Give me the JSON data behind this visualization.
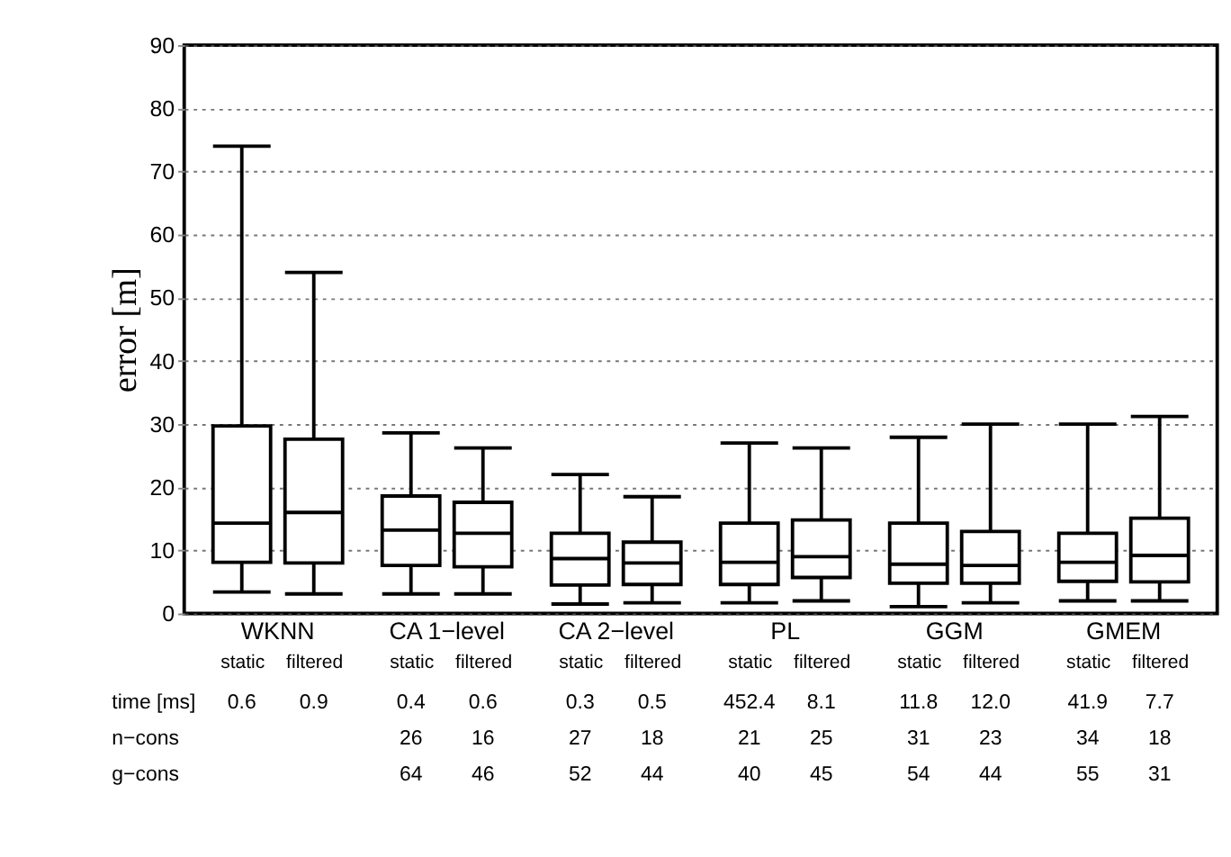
{
  "chart_data": {
    "type": "box",
    "ylabel": "error [m]",
    "ylim": [
      0,
      90
    ],
    "yticks": [
      0,
      10,
      20,
      30,
      40,
      50,
      60,
      70,
      80,
      90
    ],
    "grid": "y",
    "categories": [
      "static",
      "filtered",
      "static",
      "filtered",
      "static",
      "filtered",
      "static",
      "filtered",
      "static",
      "filtered",
      "static",
      "filtered"
    ],
    "boxes": [
      {
        "low": 3.4,
        "q1": 8.1,
        "median": 14.3,
        "q3": 29.7,
        "high": 74
      },
      {
        "low": 3.1,
        "q1": 8.0,
        "median": 16,
        "q3": 27.6,
        "high": 54
      },
      {
        "low": 3.1,
        "q1": 7.6,
        "median": 13.2,
        "q3": 18.6,
        "high": 28.6
      },
      {
        "low": 3.1,
        "q1": 7.4,
        "median": 12.7,
        "q3": 17.6,
        "high": 26.2
      },
      {
        "low": 1.5,
        "q1": 4.5,
        "median": 8.7,
        "q3": 12.7,
        "high": 22
      },
      {
        "low": 1.7,
        "q1": 4.6,
        "median": 8.0,
        "q3": 11.3,
        "high": 18.5
      },
      {
        "low": 1.7,
        "q1": 4.6,
        "median": 8.1,
        "q3": 14.3,
        "high": 27
      },
      {
        "low": 2.0,
        "q1": 5.7,
        "median": 9.0,
        "q3": 14.8,
        "high": 26.2
      },
      {
        "low": 1.1,
        "q1": 4.8,
        "median": 7.8,
        "q3": 14.3,
        "high": 27.9
      },
      {
        "low": 1.7,
        "q1": 4.8,
        "median": 7.6,
        "q3": 13,
        "high": 30
      },
      {
        "low": 2.0,
        "q1": 5.1,
        "median": 8.1,
        "q3": 12.7,
        "high": 30
      },
      {
        "low": 2.0,
        "q1": 5.0,
        "median": 9.2,
        "q3": 15.1,
        "high": 31.2
      }
    ],
    "annotations": [
      "WKNN",
      "CA 1−level",
      "CA 2−level",
      "PL",
      "GGM",
      "GMEM",
      "time [ms]",
      "0.6",
      "0.9",
      "0.4",
      "0.6",
      "0.3",
      "0.5",
      "452.4",
      "8.1",
      "11.8",
      "12.0",
      "41.9",
      "7.7",
      "n−cons",
      "26",
      "16",
      "27",
      "18",
      "21",
      "25",
      "31",
      "23",
      "34",
      "18",
      "g−cons",
      "64",
      "46",
      "52",
      "44",
      "40",
      "45",
      "54",
      "44",
      "55",
      "31"
    ]
  }
}
